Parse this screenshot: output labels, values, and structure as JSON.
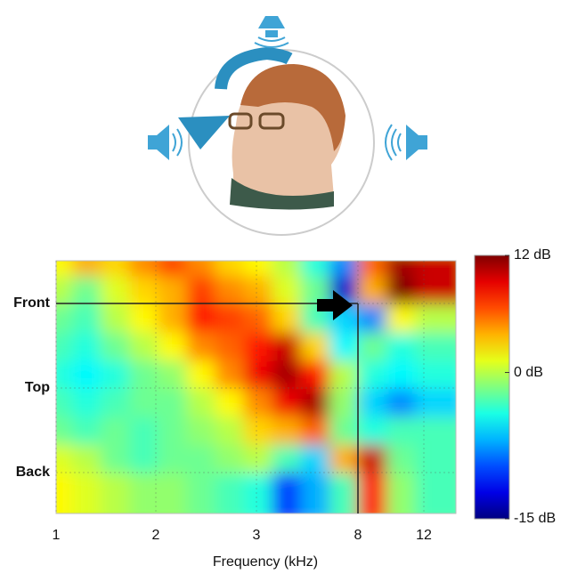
{
  "chart_data": {
    "type": "heatmap",
    "xlabel": "Frequency (kHz)",
    "x_categories": [
      "1",
      "2",
      "3",
      "8",
      "12"
    ],
    "y_categories": [
      "Front",
      "Top",
      "Back"
    ],
    "zlim": [
      -15,
      12
    ],
    "colorbar_ticks": [
      {
        "value": 12,
        "label": "12 dB"
      },
      {
        "value": 0,
        "label": "0 dB"
      },
      {
        "value": -15,
        "label": "-15 dB"
      }
    ],
    "colormap": "jet",
    "z": [
      [
        2,
        4,
        3,
        5,
        7,
        5,
        3,
        2,
        0,
        -4,
        -8,
        6,
        11,
        10
      ],
      [
        0,
        -2,
        1,
        3,
        4,
        7,
        5,
        4,
        1,
        -2,
        -13,
        4,
        12,
        10
      ],
      [
        -2,
        -3,
        0,
        2,
        4,
        8,
        7,
        6,
        3,
        -3,
        -6,
        -8,
        2,
        0
      ],
      [
        -3,
        -4,
        -2,
        0,
        2,
        5,
        6,
        8,
        10,
        3,
        -5,
        -2,
        -4,
        -3
      ],
      [
        -4,
        -5,
        -4,
        -2,
        -1,
        2,
        5,
        9,
        11,
        8,
        0,
        -4,
        -5,
        -4
      ],
      [
        -3,
        -4,
        -3,
        -2,
        -2,
        0,
        2,
        5,
        9,
        11,
        -1,
        -6,
        -8,
        -6
      ],
      [
        -2,
        -3,
        -2,
        -3,
        -2,
        -1,
        0,
        3,
        4,
        6,
        -2,
        -4,
        -3,
        -3
      ],
      [
        1,
        0,
        -2,
        -3,
        -2,
        -2,
        -1,
        0,
        -3,
        -6,
        4,
        10,
        -2,
        -3
      ],
      [
        2,
        1,
        0,
        -1,
        -1,
        -2,
        -3,
        -4,
        -10,
        -7,
        -3,
        8,
        -1,
        -3
      ]
    ]
  }
}
